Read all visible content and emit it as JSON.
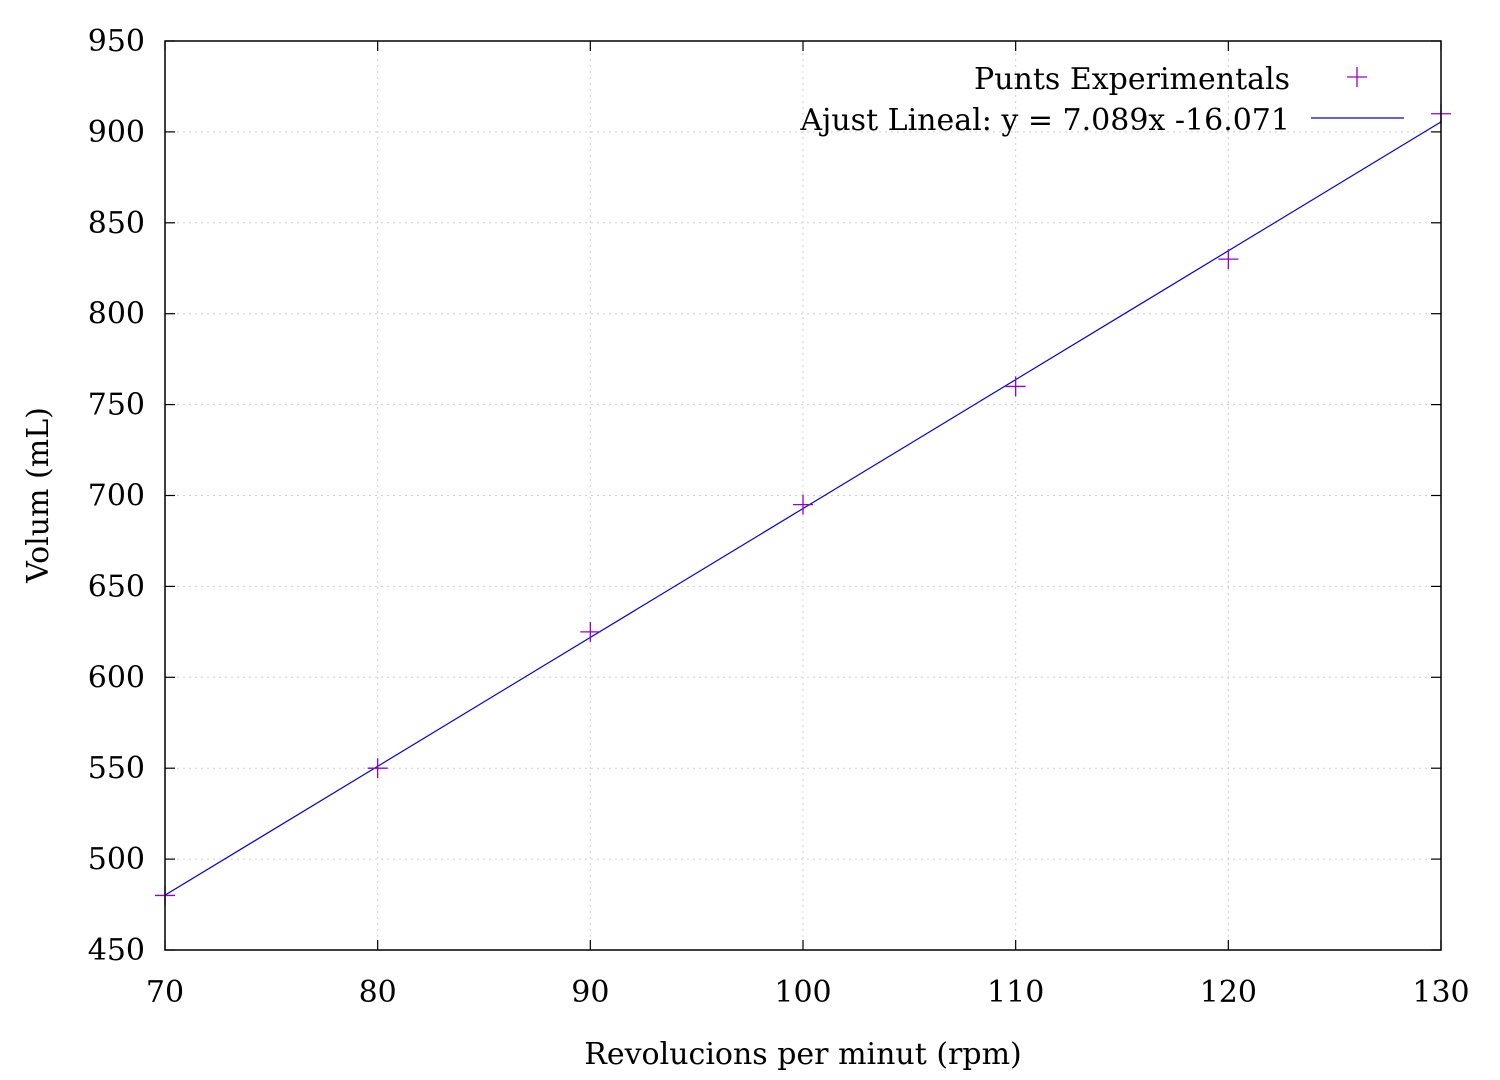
{
  "chart_data": {
    "type": "scatter",
    "xlabel": "Revolucions per minut (rpm)",
    "ylabel": "Volum (mL)",
    "xlim": [
      70,
      130
    ],
    "ylim": [
      450,
      950
    ],
    "xticks": [
      70,
      80,
      90,
      100,
      110,
      120,
      130
    ],
    "yticks": [
      450,
      500,
      550,
      600,
      650,
      700,
      750,
      800,
      850,
      900,
      950
    ],
    "grid": true,
    "legend_position": "top-right",
    "series": [
      {
        "name": "Punts Experimentals",
        "kind": "points",
        "marker": "plus",
        "color": "#9400d3",
        "x": [
          70,
          80,
          90,
          100,
          110,
          120,
          130
        ],
        "y": [
          480,
          550,
          625,
          695,
          760,
          830,
          910
        ]
      },
      {
        "name": "Ajust Lineal: y = 7.089x -16.071",
        "kind": "line",
        "color": "#0000ee",
        "slope": 7.089,
        "intercept": -16.071,
        "x": [
          70,
          130
        ]
      }
    ]
  }
}
